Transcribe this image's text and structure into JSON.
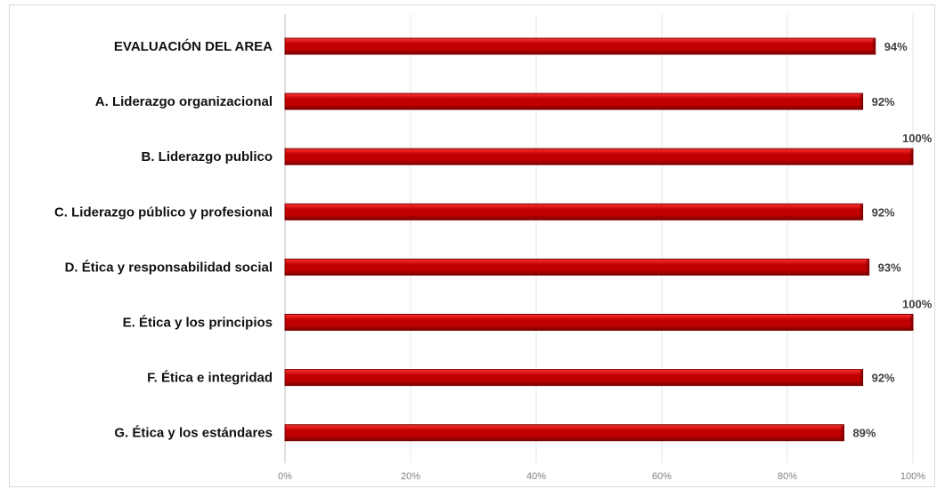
{
  "chart_data": {
    "type": "bar",
    "orientation": "horizontal",
    "categories": [
      "EVALUACIÓN DEL AREA",
      "A. Liderazgo organizacional",
      "B. Liderazgo publico",
      "C. Liderazgo público y profesional",
      "D. Ética y responsabilidad social",
      "E. Ética y los principios",
      "F. Ética e integridad",
      "G. Ética y los estándares"
    ],
    "values": [
      94,
      92,
      100,
      92,
      93,
      100,
      92,
      89
    ],
    "value_labels": [
      "94%",
      "92%",
      "100%",
      "92%",
      "93%",
      "100%",
      "92%",
      "89%"
    ],
    "x_ticks": [
      "0%",
      "20%",
      "40%",
      "60%",
      "80%",
      "100%"
    ],
    "xlim": [
      0,
      100
    ],
    "title": "",
    "xlabel": "",
    "ylabel": "",
    "grid": true,
    "legend": "none",
    "bar_color": "#c00000",
    "bar_highlight": "#ff3333",
    "bar_shadow": "#7a0000"
  }
}
